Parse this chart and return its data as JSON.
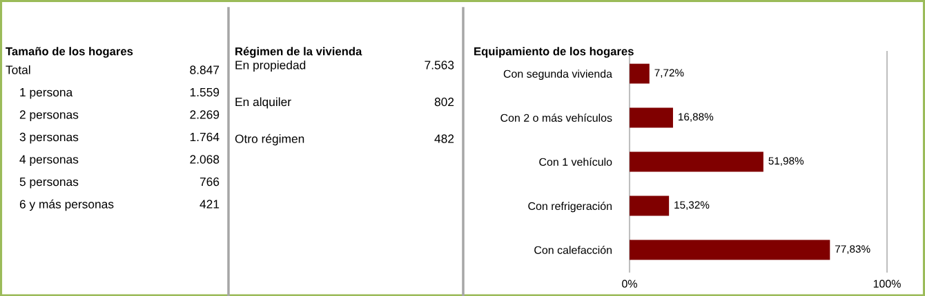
{
  "chart_data": [
    {
      "type": "other",
      "title": "Tamaño de los hogares",
      "categories": [
        "Total",
        "1 persona",
        "2 personas",
        "3 personas",
        "4 personas",
        "5 personas",
        "6 y más personas"
      ],
      "values": [
        8847,
        1559,
        2269,
        1764,
        2068,
        766,
        421
      ],
      "value_labels": [
        "8.847",
        "1.559",
        "2.269",
        "1.764",
        "2.068",
        "766",
        "421"
      ]
    },
    {
      "type": "other",
      "title": "Régimen de la vivienda",
      "categories": [
        "En propiedad",
        "En alquiler",
        "Otro régimen"
      ],
      "values": [
        7563,
        802,
        482
      ],
      "value_labels": [
        "7.563",
        "802",
        "482"
      ]
    },
    {
      "type": "bar",
      "orientation": "horizontal",
      "title": "Equipamiento de los hogares",
      "categories": [
        "Con segunda vivienda",
        "Con 2 o más vehículos",
        "Con 1 vehículo",
        "Con refrigeración",
        "Con calefacción"
      ],
      "values": [
        7.72,
        16.88,
        51.98,
        15.32,
        77.83
      ],
      "value_labels": [
        "7,72%",
        "16,88%",
        "51,98%",
        "15,32%",
        "77,83%"
      ],
      "color": "#800000",
      "xlim": [
        0,
        100
      ],
      "xticks": [
        {
          "value": 0,
          "label": "0%"
        },
        {
          "value": 100,
          "label": "100%"
        }
      ],
      "legend": false
    }
  ]
}
